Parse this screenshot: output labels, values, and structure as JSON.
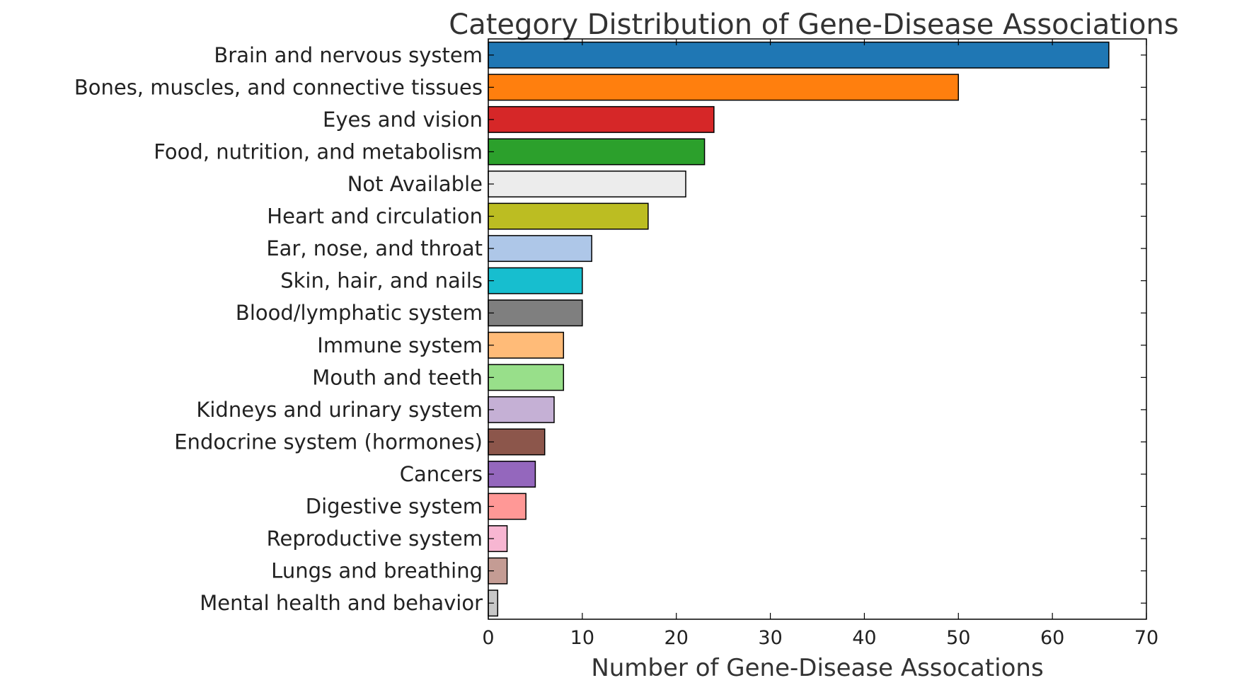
{
  "chart_data": {
    "type": "bar",
    "orientation": "horizontal",
    "title": "Category Distribution of Gene-Disease Associations",
    "xlabel": "Number of Gene-Disease Assocations",
    "ylabel": "",
    "xlim": [
      0,
      70
    ],
    "xticks": [
      "0",
      "10",
      "20",
      "30",
      "40",
      "50",
      "60",
      "70"
    ],
    "grid": false,
    "categories": [
      "Brain and nervous system",
      "Bones, muscles, and connective tissues",
      "Eyes and vision",
      "Food, nutrition, and metabolism",
      "Not Available",
      "Heart and circulation",
      "Ear, nose, and throat",
      "Skin, hair, and nails",
      "Blood/lymphatic system",
      "Immune system",
      "Mouth and teeth",
      "Kidneys and urinary system",
      "Endocrine system (hormones)",
      "Cancers",
      "Digestive system",
      "Reproductive system",
      "Lungs and breathing",
      "Mental health and behavior"
    ],
    "values": [
      66,
      50,
      24,
      23,
      21,
      17,
      11,
      10,
      10,
      8,
      8,
      7,
      6,
      5,
      4,
      2,
      2,
      1
    ],
    "colors": [
      "#1f77b4",
      "#ff7f0e",
      "#d62728",
      "#2ca02c",
      "#ececec",
      "#bcbd22",
      "#aec7e8",
      "#17becf",
      "#7f7f7f",
      "#ffbb78",
      "#98df8a",
      "#c5b0d5",
      "#8c564b",
      "#9467bd",
      "#ff9896",
      "#f7b6d2",
      "#c49c94",
      "#c7c7c7"
    ]
  }
}
